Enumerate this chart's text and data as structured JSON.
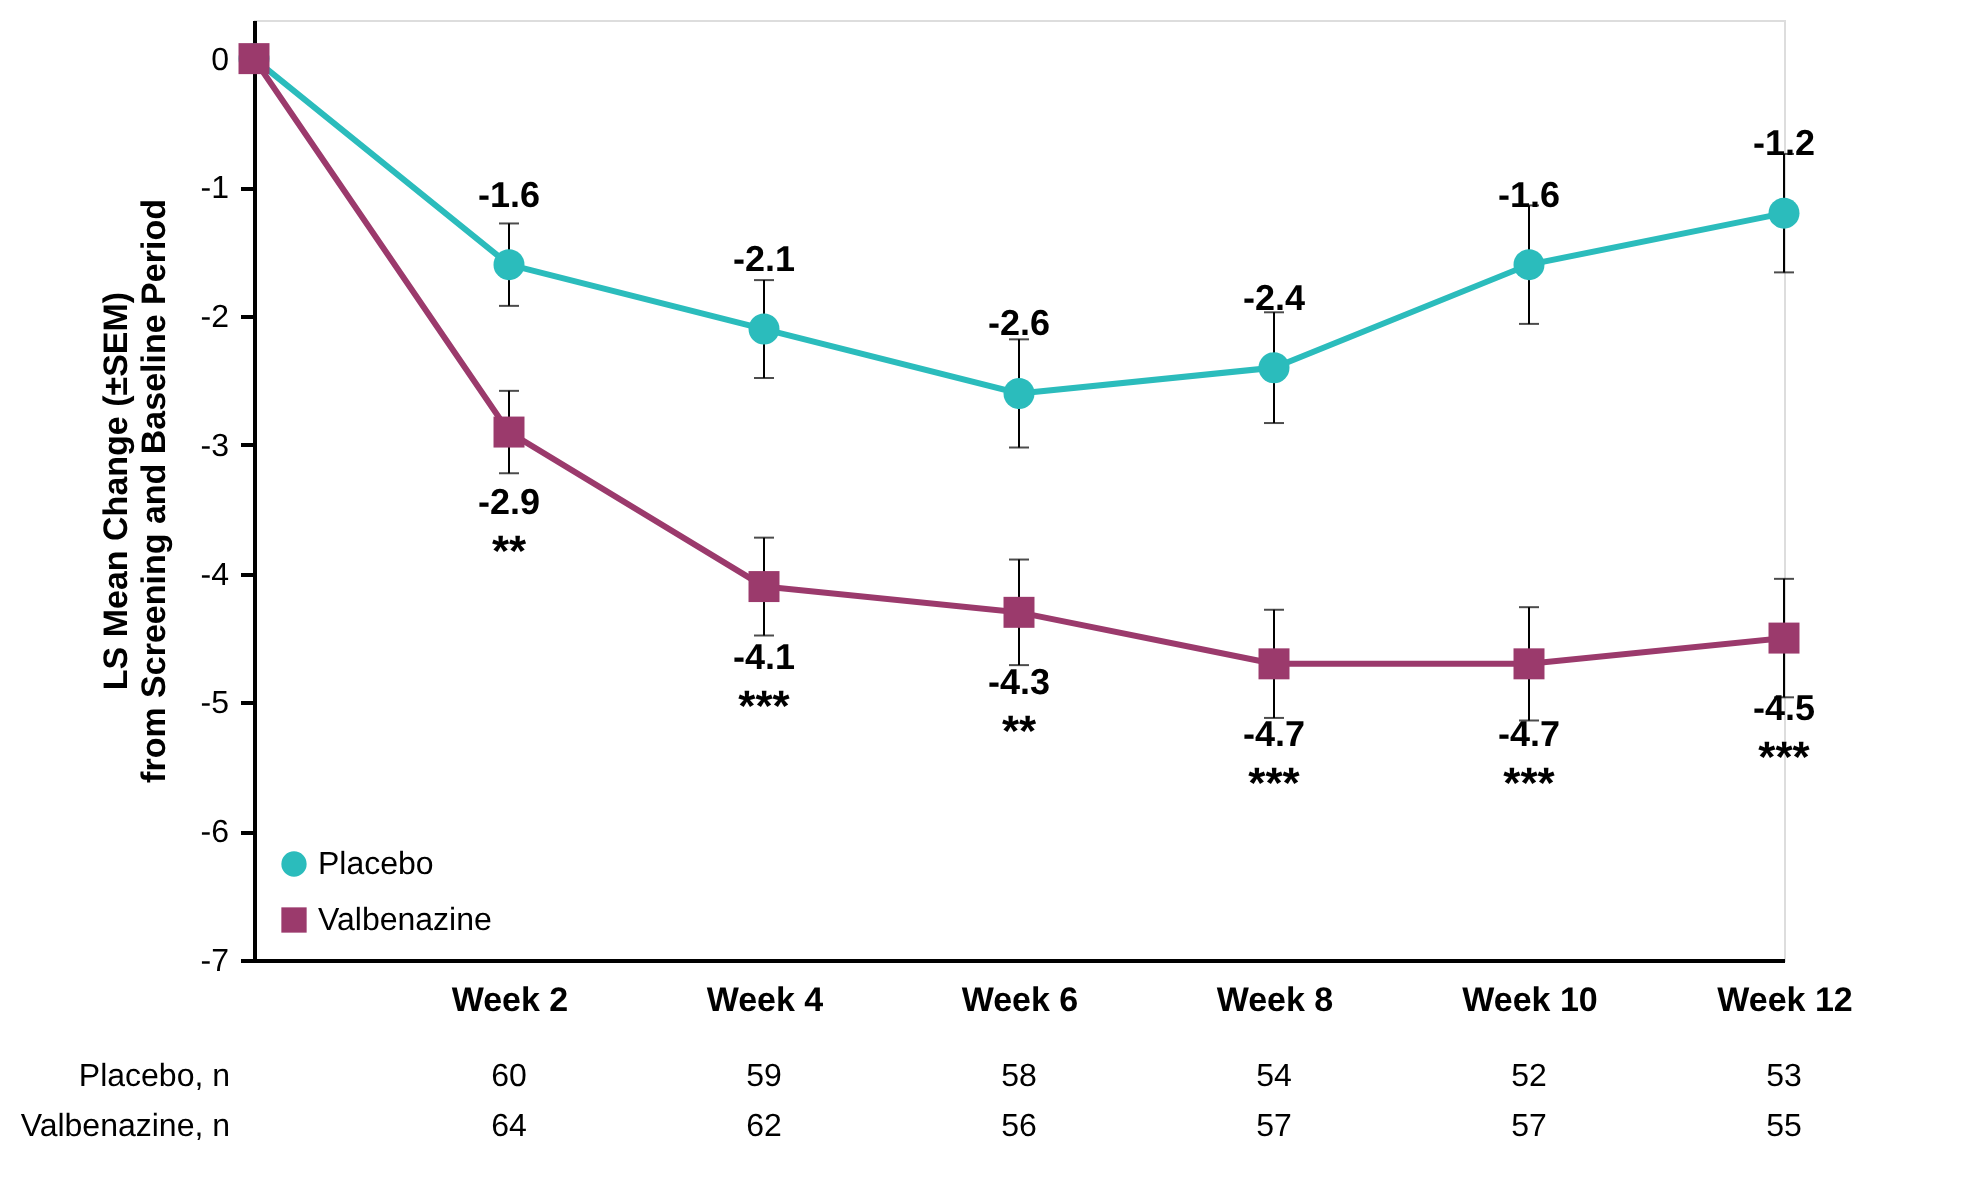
{
  "chart_data": {
    "type": "line",
    "ylabel": "LS Mean Change (±SEM)\nfrom Screening and Baseline Period",
    "categories": [
      null,
      "Week 2",
      "Week 4",
      "Week 6",
      "Week 8",
      "Week 10",
      "Week 12"
    ],
    "series": [
      {
        "name": "Placebo",
        "color": "#2bbcbc",
        "marker": "circle",
        "values": [
          0,
          -1.6,
          -2.1,
          -2.6,
          -2.4,
          -1.6,
          -1.2
        ],
        "errors": [
          null,
          0.32,
          0.38,
          0.42,
          0.43,
          0.46,
          0.46
        ],
        "value_labels": [
          null,
          "-1.6",
          "-2.1",
          "-2.6",
          "-2.4",
          "-1.6",
          "-1.2"
        ]
      },
      {
        "name": "Valbenazine",
        "color": "#9b3a6c",
        "marker": "square",
        "values": [
          0,
          -2.9,
          -4.1,
          -4.3,
          -4.7,
          -4.7,
          -4.5
        ],
        "errors": [
          null,
          0.32,
          0.38,
          0.41,
          0.42,
          0.44,
          0.46
        ],
        "value_labels": [
          null,
          "-2.9",
          "-4.1",
          "-4.3",
          "-4.7",
          "-4.7",
          "-4.5"
        ]
      }
    ],
    "ylim": [
      -7,
      0.3
    ],
    "yticks": [
      0,
      -1,
      -2,
      -3,
      -4,
      -5,
      -6,
      -7
    ],
    "grid": false,
    "legend": "bottom left",
    "line_style": "solid",
    "annotations": [
      "Placebo, n",
      "60",
      "59",
      "58",
      "54",
      "52",
      "53",
      "Valbenazine, n",
      "64",
      "62",
      "56",
      "57",
      "57",
      "55",
      {
        "text": "**",
        "x": "Week 2",
        "y": -2.9
      },
      {
        "text": "***",
        "x": "Week 4",
        "y": -4.1
      },
      {
        "text": "**",
        "x": "Week 6",
        "y": -4.3
      },
      {
        "text": "***",
        "x": "Week 8",
        "y": -4.7
      },
      {
        "text": "***",
        "x": "Week 10",
        "y": -4.7
      },
      {
        "text": "***",
        "x": "Week 12",
        "y": -4.5
      }
    ]
  }
}
